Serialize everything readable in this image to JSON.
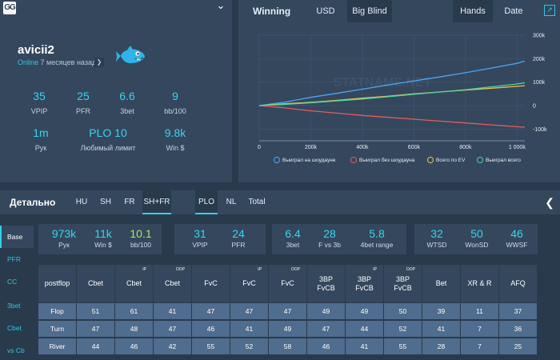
{
  "profile": {
    "logo": "GG",
    "username": "avicii2",
    "online": "Online",
    "last_seen": "7 месяцев назад",
    "stats": [
      {
        "value": "35",
        "label": "VPIP"
      },
      {
        "value": "25",
        "label": "PFR"
      },
      {
        "value": "6.6",
        "label": "3bet"
      },
      {
        "value": "9",
        "label": "bb/100"
      },
      {
        "value": "1m",
        "label": "Рук"
      },
      {
        "value": "PLO 10",
        "label": "Любимый лимит"
      },
      {
        "value": "9.8k",
        "label": "Win $"
      }
    ]
  },
  "chart_panel": {
    "title": "Winning",
    "tabs": [
      "USD",
      "Big Blind"
    ],
    "active_tab": "Big Blind",
    "mode_tabs": [
      "Hands",
      "Date"
    ],
    "active_mode": "Hands",
    "watermark": "STATNAME.NET"
  },
  "chart_data": {
    "type": "line",
    "x_ticks": [
      "0",
      "200k",
      "400k",
      "600k",
      "800k",
      "1 000k"
    ],
    "y_ticks": [
      "300k",
      "200k",
      "100k",
      "0",
      "-100k"
    ],
    "xlim": [
      0,
      1030000
    ],
    "ylim": [
      -150000,
      300000
    ],
    "grid": true,
    "legend_position": "bottom",
    "series": [
      {
        "name": "Выиграл на шоудауне",
        "color": "#4aa6f5",
        "x": [
          0,
          100000,
          200000,
          300000,
          400000,
          500000,
          600000,
          700000,
          800000,
          900000,
          1000000,
          1030000
        ],
        "y": [
          0,
          15000,
          35000,
          52000,
          70000,
          88000,
          105000,
          122000,
          140000,
          160000,
          180000,
          190000
        ]
      },
      {
        "name": "Выиграл без шоудауна",
        "color": "#e65c5c",
        "x": [
          0,
          100000,
          200000,
          300000,
          400000,
          500000,
          600000,
          700000,
          800000,
          900000,
          1000000,
          1030000
        ],
        "y": [
          0,
          -10000,
          -22000,
          -32000,
          -42000,
          -50000,
          -58000,
          -66000,
          -74000,
          -82000,
          -90000,
          -92000
        ]
      },
      {
        "name": "Всего по EV",
        "color": "#e8c34a",
        "x": [
          0,
          100000,
          200000,
          300000,
          400000,
          500000,
          600000,
          700000,
          800000,
          900000,
          1000000,
          1030000
        ],
        "y": [
          0,
          8000,
          14000,
          22000,
          32000,
          40000,
          50000,
          58000,
          66000,
          74000,
          82000,
          85000
        ]
      },
      {
        "name": "Выиграл всего",
        "color": "#4fd3a0",
        "x": [
          0,
          100000,
          200000,
          300000,
          400000,
          500000,
          600000,
          700000,
          800000,
          900000,
          1000000,
          1030000
        ],
        "y": [
          0,
          5000,
          12000,
          20000,
          28000,
          38000,
          48000,
          58000,
          68000,
          80000,
          92000,
          97000
        ]
      }
    ]
  },
  "details": {
    "title": "Детально",
    "tabs": [
      "HU",
      "SH",
      "FR",
      "SH+FR"
    ],
    "active_tab": "SH+FR",
    "game_tabs": [
      "PLO",
      "NL",
      "Total"
    ],
    "active_game": "PLO",
    "sidebar": [
      "Base",
      "PFR",
      "CC",
      "3bet",
      "Cbet",
      "vs Cb"
    ],
    "active_sidebar": "Base",
    "cards": [
      [
        {
          "value": "973k",
          "label": "Рук"
        },
        {
          "value": "11k",
          "label": "Win $"
        },
        {
          "value": "10.1",
          "label": "bb/100"
        }
      ],
      [
        {
          "value": "31",
          "label": "VPIP"
        },
        {
          "value": "24",
          "label": "PFR"
        }
      ],
      [
        {
          "value": "6.4",
          "label": "3bet"
        },
        {
          "value": "28",
          "label": "F vs 3b"
        },
        {
          "value": "5.8",
          "label": "4bet range"
        }
      ],
      [
        {
          "value": "32",
          "label": "WTSD"
        },
        {
          "value": "50",
          "label": "WonSD"
        },
        {
          "value": "46",
          "label": "WWSF"
        }
      ]
    ],
    "table": {
      "headers": [
        {
          "label": "postflop",
          "sup": ""
        },
        {
          "label": "Cbet",
          "sup": ""
        },
        {
          "label": "Cbet",
          "sup": "IP"
        },
        {
          "label": "Cbet",
          "sup": "OOP"
        },
        {
          "label": "FvC",
          "sup": ""
        },
        {
          "label": "FvC",
          "sup": "IP"
        },
        {
          "label": "FvC",
          "sup": "OOP"
        },
        {
          "label": "3BP FvCB",
          "sup": ""
        },
        {
          "label": "3BP FvCB",
          "sup": "IP"
        },
        {
          "label": "3BP FvCB",
          "sup": "OOP"
        },
        {
          "label": "Bet",
          "sup": ""
        },
        {
          "label": "XR & R",
          "sup": ""
        },
        {
          "label": "AFQ",
          "sup": ""
        }
      ],
      "rows": [
        [
          "Flop",
          "51",
          "61",
          "41",
          "47",
          "47",
          "47",
          "49",
          "49",
          "50",
          "39",
          "11",
          "37"
        ],
        [
          "Turn",
          "47",
          "48",
          "47",
          "46",
          "41",
          "49",
          "47",
          "44",
          "52",
          "41",
          "7",
          "36"
        ],
        [
          "River",
          "44",
          "46",
          "42",
          "55",
          "52",
          "58",
          "46",
          "41",
          "55",
          "28",
          "7",
          "25"
        ]
      ]
    }
  }
}
